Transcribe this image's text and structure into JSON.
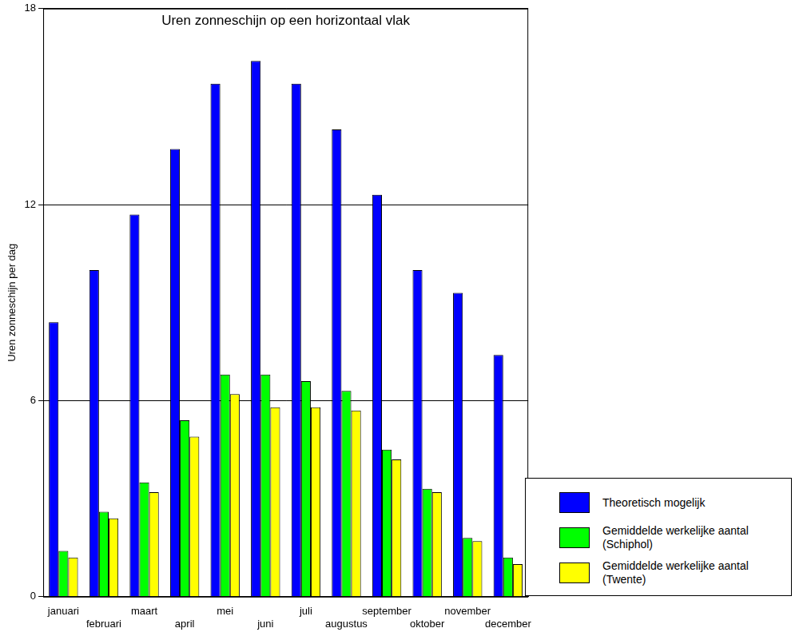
{
  "chart_data": {
    "type": "bar",
    "title": "Uren zonneschijn op een horizontaal vlak",
    "y_label": "Uren zonneschijn per dag",
    "categories": [
      "januari",
      "februari",
      "maart",
      "april",
      "mei",
      "juni",
      "juli",
      "augustus",
      "september",
      "oktober",
      "november",
      "december"
    ],
    "series": [
      {
        "name": "Theoretisch mogelijk",
        "color": "#0000ff",
        "values": [
          8.4,
          10.0,
          11.7,
          13.7,
          15.7,
          16.4,
          15.7,
          14.3,
          12.3,
          10.0,
          9.3,
          7.4
        ]
      },
      {
        "name": "Gemiddelde werkelijke aantal (Schiphol)",
        "color": "#00ff00",
        "values": [
          1.4,
          2.6,
          3.5,
          5.4,
          6.8,
          6.8,
          6.6,
          6.3,
          4.5,
          3.3,
          1.8,
          1.2
        ]
      },
      {
        "name": "Gemiddelde werkelijke aantal (Twente)",
        "color": "#ffff00",
        "values": [
          1.2,
          2.4,
          3.2,
          4.9,
          6.2,
          5.8,
          5.8,
          5.7,
          4.2,
          3.2,
          1.7,
          1.0
        ]
      }
    ],
    "ylim": [
      0,
      18
    ],
    "yticks": [
      0,
      6,
      12,
      18
    ],
    "grid": true,
    "legend": "right"
  }
}
